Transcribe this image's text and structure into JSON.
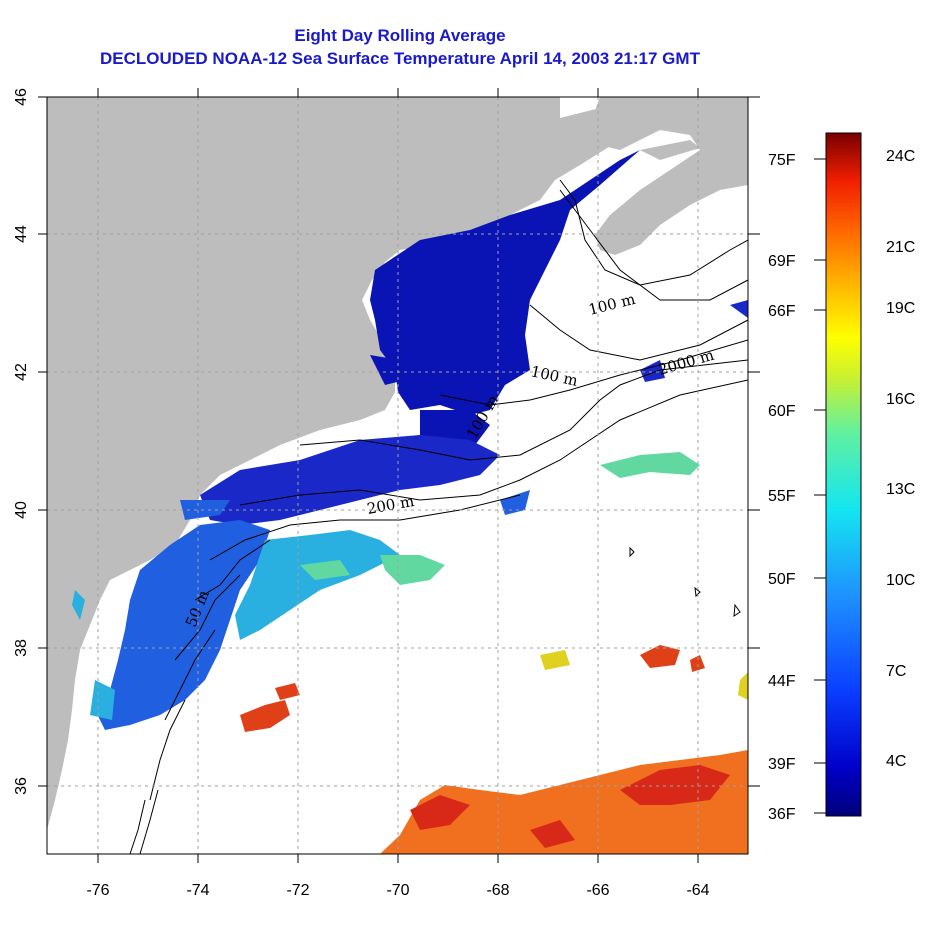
{
  "title": {
    "line1": "Eight Day Rolling Average",
    "line2": "DECLOUDED NOAA-12 Sea Surface Temperature April 14, 2003 21:17 GMT"
  },
  "axes": {
    "x_ticks": [
      "-76",
      "-74",
      "-72",
      "-70",
      "-68",
      "-66",
      "-64"
    ],
    "y_ticks": [
      "36",
      "38",
      "40",
      "42",
      "44",
      "46"
    ],
    "x_range": [
      -77,
      -63
    ],
    "y_range": [
      35,
      46
    ]
  },
  "colorbar": {
    "fahrenheit_labels": [
      "75F",
      "69F",
      "66F",
      "60F",
      "55F",
      "50F",
      "44F",
      "39F",
      "36F"
    ],
    "celsius_labels": [
      "24C",
      "21C",
      "19C",
      "16C",
      "13C",
      "10C",
      "7C",
      "4C"
    ]
  },
  "isobath_labels": [
    "100 m",
    "2000 m",
    "100 m",
    "100 m",
    "50 m",
    "200 m"
  ],
  "colors": {
    "land": "#bdbdbd",
    "cold": "#0a14b4",
    "cool": "#1e5ae6",
    "mild": "#28b4e6",
    "warm": "#f06414",
    "hot": "#dc2814",
    "title": "#1a1acc"
  }
}
